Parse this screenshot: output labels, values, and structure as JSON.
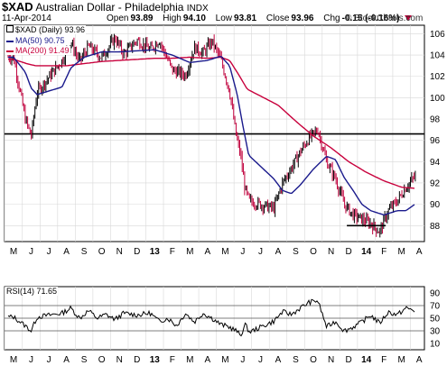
{
  "header": {
    "symbol": "$XAD",
    "name": "Australian Dollar - Philadelphia",
    "exchange": "INDX",
    "date": "11-Apr-2014",
    "open_label": "Open",
    "open": "93.89",
    "high_label": "High",
    "high": "94.10",
    "low_label": "Low",
    "low": "93.81",
    "close_label": "Close",
    "close": "93.96",
    "chg_label": "Chg",
    "chg": "-0.15 (-0.16%)",
    "watermark": "© StockCharts.com"
  },
  "legend": {
    "price": "$XAD (Daily) 93.96",
    "ma50": "MA(50) 90.75",
    "ma200": "MA(200) 91.49",
    "rsi": "RSI(14) 71.65"
  },
  "colors": {
    "up": "#000000",
    "down": "#c0003c",
    "ma50": "#1a1a8c",
    "ma200": "#c8003c",
    "grid": "#d8d8d8",
    "hline": "#000000"
  },
  "chart_data": [
    {
      "type": "bar",
      "name": "price",
      "ylim": [
        86.5,
        106.8
      ],
      "yticks": [
        88,
        90,
        92,
        94,
        96,
        98,
        100,
        102,
        104,
        106
      ],
      "x_months": [
        "M",
        "J",
        "J",
        "A",
        "S",
        "O",
        "N",
        "D",
        "13",
        "F",
        "M",
        "A",
        "M",
        "J",
        "J",
        "A",
        "S",
        "O",
        "N",
        "D",
        "14",
        "F",
        "M",
        "A"
      ],
      "bold_months": [
        "13",
        "14"
      ],
      "horizontal_line": 96.6,
      "support_line": {
        "from_month": "D",
        "to_month": "F",
        "value": 88.0
      },
      "price_series": {
        "name": "$XAD (Daily)",
        "keypoints": [
          [
            "M",
            103.8
          ],
          [
            "J",
            98.0
          ],
          [
            "J",
            96.4
          ],
          [
            "J",
            100.5
          ],
          [
            "A",
            103.5
          ],
          [
            "A",
            105.2
          ],
          [
            "S",
            103.4
          ],
          [
            "S",
            104.8
          ],
          [
            "O",
            103.8
          ],
          [
            "N",
            105.6
          ],
          [
            "N",
            104.1
          ],
          [
            "D",
            105.4
          ],
          [
            "13",
            104.5
          ],
          [
            "13",
            105.4
          ],
          [
            "F",
            102.6
          ],
          [
            "M",
            102.1
          ],
          [
            "M",
            104.7
          ],
          [
            "A",
            104.2
          ],
          [
            "A",
            105.3
          ],
          [
            "M",
            103.6
          ],
          [
            "M",
            100.6
          ],
          [
            "J",
            96.4
          ],
          [
            "J",
            94.6
          ],
          [
            "J",
            91.4
          ],
          [
            "J",
            90.3
          ],
          [
            "A",
            89.6
          ],
          [
            "A",
            92.0
          ],
          [
            "S",
            93.4
          ],
          [
            "S",
            94.9
          ],
          [
            "O",
            96.2
          ],
          [
            "O",
            97.0
          ],
          [
            "N",
            94.0
          ],
          [
            "N",
            92.4
          ],
          [
            "D",
            90.0
          ],
          [
            "D",
            89.0
          ],
          [
            "14",
            88.6
          ],
          [
            "14",
            88.2
          ],
          [
            "F",
            87.4
          ],
          [
            "F",
            89.4
          ],
          [
            "M",
            90.3
          ],
          [
            "M",
            91.6
          ],
          [
            "A",
            92.6
          ],
          [
            "A",
            93.96
          ]
        ]
      },
      "ma50_series": {
        "name": "MA(50)",
        "keypoints": [
          [
            "M",
            103.8
          ],
          [
            "J",
            102.4
          ],
          [
            "J",
            100.9
          ],
          [
            "J",
            100.3
          ],
          [
            "A",
            101.0
          ],
          [
            "A",
            102.8
          ],
          [
            "S",
            103.8
          ],
          [
            "O",
            104.3
          ],
          [
            "N",
            104.3
          ],
          [
            "D",
            104.4
          ],
          [
            "13",
            104.5
          ],
          [
            "F",
            104.0
          ],
          [
            "M",
            103.3
          ],
          [
            "A",
            103.5
          ],
          [
            "M",
            103.9
          ],
          [
            "M",
            103.0
          ],
          [
            "J",
            100.4
          ],
          [
            "J",
            97.4
          ],
          [
            "J",
            94.6
          ],
          [
            "A",
            92.4
          ],
          [
            "A",
            91.3
          ],
          [
            "S",
            91.0
          ],
          [
            "S",
            91.8
          ],
          [
            "O",
            93.3
          ],
          [
            "N",
            94.5
          ],
          [
            "N",
            94.2
          ],
          [
            "D",
            92.5
          ],
          [
            "D",
            91.3
          ],
          [
            "14",
            90.0
          ],
          [
            "14",
            89.4
          ],
          [
            "F",
            89.0
          ],
          [
            "M",
            89.4
          ],
          [
            "M",
            89.4
          ],
          [
            "A",
            90.0
          ],
          [
            "A",
            90.75
          ]
        ]
      },
      "ma200_series": {
        "name": "MA(200)",
        "keypoints": [
          [
            "M",
            103.6
          ],
          [
            "J",
            103.2
          ],
          [
            "J",
            103.0
          ],
          [
            "A",
            103.0
          ],
          [
            "S",
            103.2
          ],
          [
            "O",
            103.4
          ],
          [
            "N",
            103.5
          ],
          [
            "D",
            103.6
          ],
          [
            "13",
            103.7
          ],
          [
            "F",
            103.7
          ],
          [
            "M",
            103.8
          ],
          [
            "A",
            103.7
          ],
          [
            "M",
            103.8
          ],
          [
            "M",
            103.5
          ],
          [
            "J",
            102.2
          ],
          [
            "J",
            100.8
          ],
          [
            "A",
            99.3
          ],
          [
            "S",
            97.8
          ],
          [
            "O",
            96.4
          ],
          [
            "N",
            95.3
          ],
          [
            "D",
            94.0
          ],
          [
            "14",
            93.0
          ],
          [
            "F",
            92.2
          ],
          [
            "M",
            91.6
          ],
          [
            "A",
            91.5
          ],
          [
            "A",
            91.49
          ]
        ]
      }
    },
    {
      "type": "line",
      "name": "RSI(14)",
      "ylim": [
        0,
        100
      ],
      "yticks": [
        10,
        30,
        50,
        70,
        90
      ],
      "reference_lines": [
        30,
        50,
        70
      ],
      "x_months": [
        "M",
        "J",
        "J",
        "A",
        "S",
        "O",
        "N",
        "D",
        "13",
        "F",
        "M",
        "A",
        "M",
        "J",
        "J",
        "A",
        "S",
        "O",
        "N",
        "D",
        "14",
        "F",
        "M",
        "A"
      ],
      "bold_months": [
        "13",
        "14"
      ],
      "rsi_series": {
        "name": "RSI(14)",
        "keypoints": [
          [
            "M",
            52
          ],
          [
            "J",
            38
          ],
          [
            "J",
            30
          ],
          [
            "J",
            52
          ],
          [
            "A",
            58
          ],
          [
            "A",
            66
          ],
          [
            "S",
            50
          ],
          [
            "S",
            62
          ],
          [
            "O",
            50
          ],
          [
            "O",
            56
          ],
          [
            "N",
            48
          ],
          [
            "N",
            58
          ],
          [
            "D",
            55
          ],
          [
            "13",
            58
          ],
          [
            "13",
            45
          ],
          [
            "F",
            50
          ],
          [
            "F",
            38
          ],
          [
            "M",
            58
          ],
          [
            "M",
            44
          ],
          [
            "A",
            58
          ],
          [
            "A",
            50
          ],
          [
            "M",
            40
          ],
          [
            "M",
            36
          ],
          [
            "J",
            30
          ],
          [
            "J",
            22
          ],
          [
            "J",
            40
          ],
          [
            "J",
            28
          ],
          [
            "A",
            45
          ],
          [
            "A",
            60
          ],
          [
            "S",
            56
          ],
          [
            "S",
            66
          ],
          [
            "O",
            75
          ],
          [
            "O",
            78
          ],
          [
            "N",
            36
          ],
          [
            "N",
            45
          ],
          [
            "D",
            30
          ],
          [
            "D",
            36
          ],
          [
            "14",
            44
          ],
          [
            "14",
            55
          ],
          [
            "F",
            42
          ],
          [
            "F",
            60
          ],
          [
            "M",
            55
          ],
          [
            "M",
            66
          ],
          [
            "A",
            62
          ],
          [
            "A",
            71.65
          ]
        ]
      }
    }
  ]
}
